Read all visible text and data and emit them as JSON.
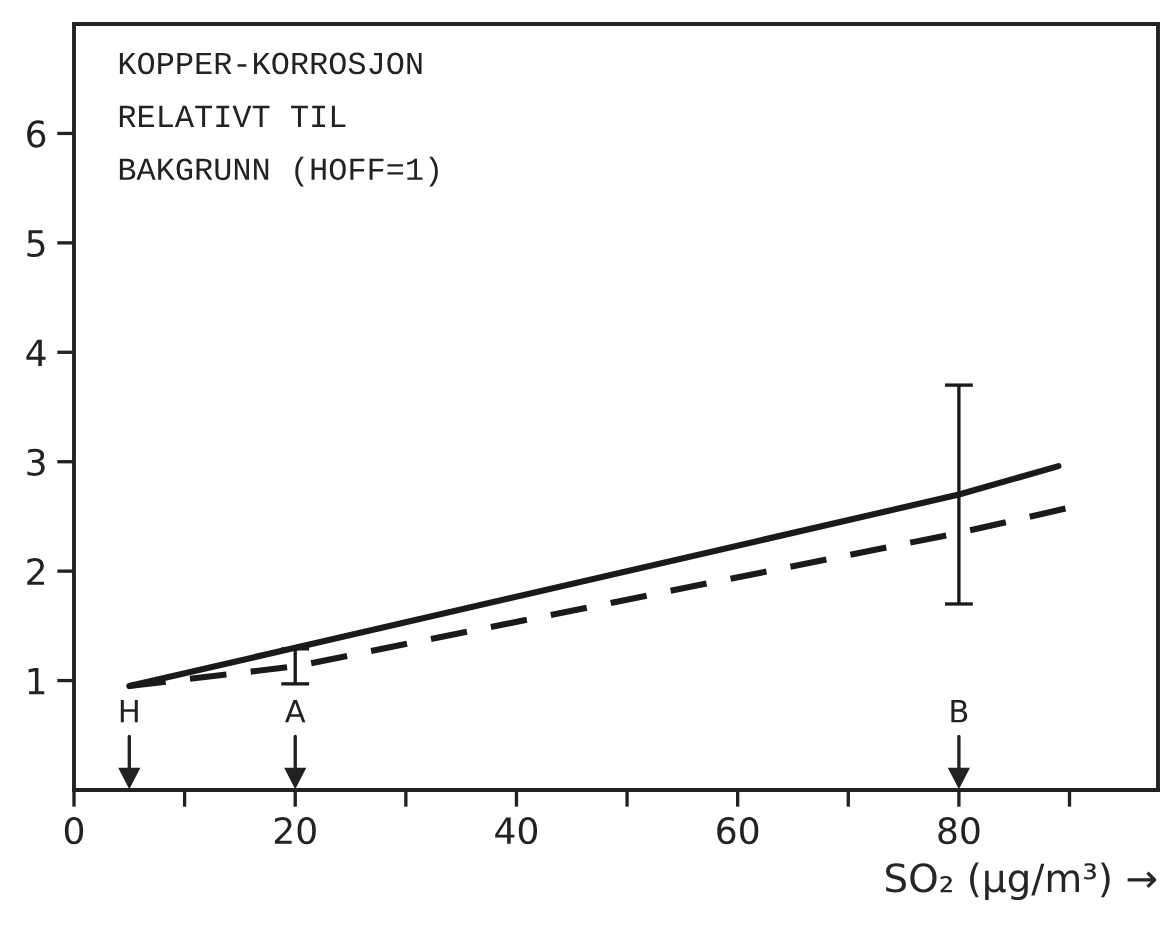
{
  "chart_data": {
    "type": "line",
    "title": "KOPPER-KORROSJON\nRELATIVT TIL\nBAKGRUNN (HOFF=1)",
    "xlabel": "SO₂ (µg/m³) →",
    "series": [
      {
        "color": "#1a1a1a",
        "line_style": "solid",
        "x": [
          5,
          20,
          80,
          89
        ],
        "values": [
          0.95,
          1.3,
          2.7,
          2.96
        ],
        "errors": [
          null,
          null,
          1.0,
          null
        ]
      },
      {
        "color": "#1a1a1a",
        "line_style": "dashed",
        "x": [
          5,
          20,
          80,
          90
        ],
        "values": [
          0.95,
          1.13,
          2.35,
          2.58
        ],
        "errors": [
          null,
          0.16,
          null,
          null
        ]
      }
    ],
    "xlim": [
      0,
      98
    ],
    "ylim": [
      0,
      7
    ],
    "xticks": [
      0,
      {
        "value": 10,
        "label": null
      },
      20,
      {
        "value": 30,
        "label": null
      },
      40,
      {
        "value": 50,
        "label": null
      },
      60,
      {
        "value": 70,
        "label": null
      },
      80,
      {
        "value": 90,
        "label": null
      }
    ],
    "yticks": [
      1,
      2,
      3,
      4,
      5,
      6
    ],
    "ref_lines": [
      {
        "axis": "x",
        "value": 5,
        "label": "H"
      },
      {
        "axis": "x",
        "value": 20,
        "label": "A"
      },
      {
        "axis": "x",
        "value": 80,
        "label": "B"
      }
    ],
    "grid": false,
    "legend": false,
    "marker": "none"
  }
}
